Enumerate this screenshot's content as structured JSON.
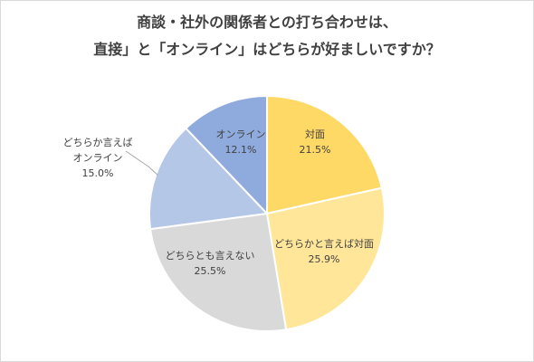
{
  "chart_data": {
    "type": "pie",
    "title_lines": [
      "商談・社外の関係者との打ち合わせは、",
      "直接」と「オンライン」はどちらが好ましいですか？"
    ],
    "categories": [
      "対面",
      "どちらかと言えば対面",
      "どちらとも言えない",
      "どちらか言えば オンライン",
      "オンライン"
    ],
    "values": [
      21.5,
      25.9,
      25.5,
      15.0,
      12.1
    ],
    "value_labels": [
      "21.5%",
      "25.9%",
      "25.5%",
      "15.0%",
      "12.1%"
    ],
    "slice_label_lines": [
      [
        "対面",
        "21.5%"
      ],
      [
        "どちらかと言えば対面",
        "25.9%"
      ],
      [
        "どちらとも言えない",
        "25.5%"
      ],
      [
        "どちらか言えば",
        "オンライン",
        "15.0%"
      ],
      [
        "オンライン",
        "12.1%"
      ]
    ],
    "colors": [
      "#ffd966",
      "#ffe699",
      "#d9d9d9",
      "#b4c7e7",
      "#8faadc"
    ],
    "start": "12 o'clock",
    "direction": "clockwise",
    "legend": "none"
  }
}
